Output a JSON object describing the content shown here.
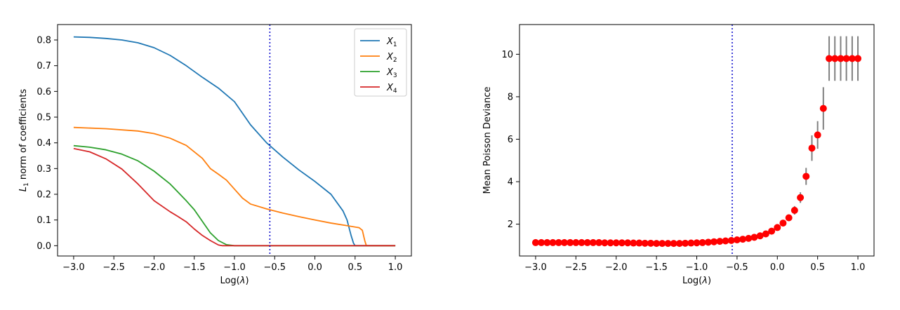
{
  "chart_data": [
    {
      "type": "line",
      "xlabel_main": "Log(",
      "xlabel_symbol": "λ",
      "xlabel_end": ")",
      "ylabel_prefix": "L",
      "ylabel_sub": "1",
      "ylabel_rest": " norm of coefficients",
      "xlim": [
        -3.2,
        1.2
      ],
      "ylim": [
        -0.04,
        0.86
      ],
      "xticks": [
        -3.0,
        -2.5,
        -2.0,
        -1.5,
        -1.0,
        -0.5,
        0.0,
        0.5,
        1.0
      ],
      "xtick_labels": [
        "−3.0",
        "−2.5",
        "−2.0",
        "−1.5",
        "−1.0",
        "−0.5",
        "0.0",
        "0.5",
        "1.0"
      ],
      "yticks": [
        0.0,
        0.1,
        0.2,
        0.3,
        0.4,
        0.5,
        0.6,
        0.7,
        0.8
      ],
      "ytick_labels": [
        "0.0",
        "0.1",
        "0.2",
        "0.3",
        "0.4",
        "0.5",
        "0.6",
        "0.7",
        "0.8"
      ],
      "vline_x": -0.56,
      "vline_color": "#0000cc",
      "legend_position": "top-right",
      "grid": false,
      "series": [
        {
          "name": "X",
          "sub": "1",
          "color": "#1f77b4",
          "points": [
            [
              -3.0,
              0.812
            ],
            [
              -2.8,
              0.81
            ],
            [
              -2.6,
              0.806
            ],
            [
              -2.4,
              0.8
            ],
            [
              -2.2,
              0.789
            ],
            [
              -2.0,
              0.77
            ],
            [
              -1.8,
              0.74
            ],
            [
              -1.6,
              0.7
            ],
            [
              -1.4,
              0.655
            ],
            [
              -1.2,
              0.613
            ],
            [
              -1.0,
              0.56
            ],
            [
              -0.8,
              0.47
            ],
            [
              -0.6,
              0.4
            ],
            [
              -0.4,
              0.345
            ],
            [
              -0.2,
              0.295
            ],
            [
              0.0,
              0.25
            ],
            [
              0.2,
              0.2
            ],
            [
              0.35,
              0.135
            ],
            [
              0.4,
              0.1
            ],
            [
              0.45,
              0.04
            ],
            [
              0.48,
              0.01
            ],
            [
              0.5,
              0.0
            ],
            [
              1.0,
              0.0
            ]
          ]
        },
        {
          "name": "X",
          "sub": "2",
          "color": "#ff7f0e",
          "points": [
            [
              -3.0,
              0.46
            ],
            [
              -2.6,
              0.455
            ],
            [
              -2.2,
              0.446
            ],
            [
              -2.0,
              0.436
            ],
            [
              -1.8,
              0.418
            ],
            [
              -1.6,
              0.39
            ],
            [
              -1.4,
              0.34
            ],
            [
              -1.3,
              0.3
            ],
            [
              -1.2,
              0.278
            ],
            [
              -1.1,
              0.255
            ],
            [
              -1.0,
              0.22
            ],
            [
              -0.9,
              0.185
            ],
            [
              -0.8,
              0.162
            ],
            [
              -0.6,
              0.143
            ],
            [
              -0.4,
              0.127
            ],
            [
              -0.2,
              0.113
            ],
            [
              0.0,
              0.1
            ],
            [
              0.2,
              0.088
            ],
            [
              0.4,
              0.078
            ],
            [
              0.55,
              0.07
            ],
            [
              0.59,
              0.06
            ],
            [
              0.62,
              0.02
            ],
            [
              0.64,
              0.0
            ],
            [
              1.0,
              0.0
            ]
          ]
        },
        {
          "name": "X",
          "sub": "3",
          "color": "#2ca02c",
          "points": [
            [
              -3.0,
              0.389
            ],
            [
              -2.8,
              0.383
            ],
            [
              -2.6,
              0.373
            ],
            [
              -2.4,
              0.356
            ],
            [
              -2.2,
              0.33
            ],
            [
              -2.0,
              0.29
            ],
            [
              -1.8,
              0.24
            ],
            [
              -1.6,
              0.175
            ],
            [
              -1.5,
              0.14
            ],
            [
              -1.4,
              0.095
            ],
            [
              -1.3,
              0.05
            ],
            [
              -1.2,
              0.02
            ],
            [
              -1.1,
              0.004
            ],
            [
              -1.0,
              0.0
            ],
            [
              1.0,
              0.0
            ]
          ]
        },
        {
          "name": "X",
          "sub": "4",
          "color": "#d62728",
          "points": [
            [
              -3.0,
              0.378
            ],
            [
              -2.8,
              0.365
            ],
            [
              -2.6,
              0.338
            ],
            [
              -2.4,
              0.298
            ],
            [
              -2.2,
              0.24
            ],
            [
              -2.0,
              0.175
            ],
            [
              -1.8,
              0.132
            ],
            [
              -1.7,
              0.113
            ],
            [
              -1.6,
              0.093
            ],
            [
              -1.5,
              0.065
            ],
            [
              -1.4,
              0.04
            ],
            [
              -1.3,
              0.02
            ],
            [
              -1.2,
              0.003
            ],
            [
              -1.15,
              0.0
            ],
            [
              1.0,
              0.0
            ]
          ]
        }
      ]
    },
    {
      "type": "scatter",
      "xlabel_main": "Log(",
      "xlabel_symbol": "λ",
      "xlabel_end": ")",
      "ylabel": "Mean Poisson Deviance",
      "xlim": [
        -3.2,
        1.2
      ],
      "ylim": [
        0.5,
        11.4
      ],
      "xticks": [
        -3.0,
        -2.5,
        -2.0,
        -1.5,
        -1.0,
        -0.5,
        0.0,
        0.5,
        1.0
      ],
      "xtick_labels": [
        "−3.0",
        "−2.5",
        "−2.0",
        "−1.5",
        "−1.0",
        "−0.5",
        "0.0",
        "0.5",
        "1.0"
      ],
      "yticks": [
        2,
        4,
        6,
        8,
        10
      ],
      "ytick_labels": [
        "2",
        "4",
        "6",
        "8",
        "10"
      ],
      "vline_x": -0.56,
      "vline_color": "#0000cc",
      "marker_color": "#ff0000",
      "errorbar_color": "#808080",
      "grid": false,
      "x": [
        -3.0,
        -2.929,
        -2.857,
        -2.786,
        -2.714,
        -2.643,
        -2.571,
        -2.5,
        -2.429,
        -2.357,
        -2.286,
        -2.214,
        -2.143,
        -2.071,
        -2.0,
        -1.929,
        -1.857,
        -1.786,
        -1.714,
        -1.643,
        -1.571,
        -1.5,
        -1.429,
        -1.357,
        -1.286,
        -1.214,
        -1.143,
        -1.071,
        -1.0,
        -0.929,
        -0.857,
        -0.786,
        -0.714,
        -0.643,
        -0.571,
        -0.5,
        -0.429,
        -0.357,
        -0.286,
        -0.214,
        -0.143,
        -0.071,
        0.0,
        0.071,
        0.143,
        0.214,
        0.286,
        0.357,
        0.429,
        0.5,
        0.571,
        0.643,
        0.714,
        0.786,
        0.857,
        0.929,
        1.0
      ],
      "y": [
        1.13,
        1.13,
        1.13,
        1.13,
        1.13,
        1.13,
        1.13,
        1.13,
        1.13,
        1.13,
        1.13,
        1.13,
        1.12,
        1.12,
        1.12,
        1.12,
        1.12,
        1.11,
        1.11,
        1.1,
        1.1,
        1.09,
        1.09,
        1.09,
        1.09,
        1.09,
        1.1,
        1.11,
        1.12,
        1.13,
        1.15,
        1.17,
        1.19,
        1.21,
        1.23,
        1.26,
        1.29,
        1.33,
        1.38,
        1.45,
        1.54,
        1.67,
        1.84,
        2.05,
        2.3,
        2.65,
        3.25,
        4.25,
        5.58,
        6.2,
        7.45,
        9.8,
        9.8,
        9.8,
        9.8,
        9.8,
        9.8
      ],
      "yerr": [
        0.05,
        0.05,
        0.05,
        0.05,
        0.05,
        0.05,
        0.05,
        0.05,
        0.05,
        0.05,
        0.05,
        0.05,
        0.05,
        0.05,
        0.05,
        0.05,
        0.05,
        0.05,
        0.05,
        0.05,
        0.05,
        0.05,
        0.05,
        0.05,
        0.05,
        0.05,
        0.05,
        0.05,
        0.05,
        0.05,
        0.05,
        0.05,
        0.05,
        0.05,
        0.05,
        0.06,
        0.06,
        0.06,
        0.07,
        0.07,
        0.08,
        0.09,
        0.1,
        0.12,
        0.15,
        0.2,
        0.25,
        0.4,
        0.6,
        0.65,
        1.0,
        1.05,
        1.05,
        1.05,
        1.05,
        1.05,
        1.05
      ]
    }
  ]
}
